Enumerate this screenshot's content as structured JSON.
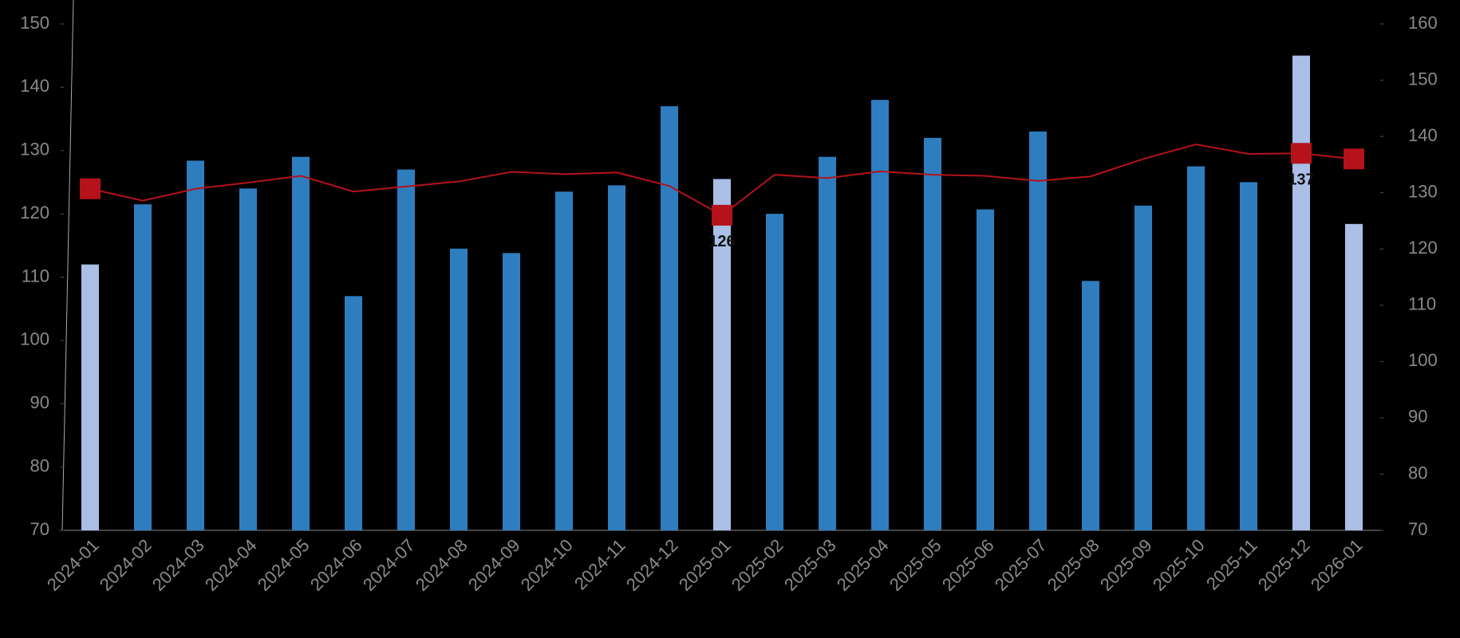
{
  "chart_data": {
    "type": "bar-line",
    "categories": [
      "2024-01",
      "2024-02",
      "2024-03",
      "2024-04",
      "2024-05",
      "2024-06",
      "2024-07",
      "2024-08",
      "2024-09",
      "2024-10",
      "2024-11",
      "2024-12",
      "2025-01",
      "2025-02",
      "2025-03",
      "2025-04",
      "2025-05",
      "2025-06",
      "2025-07",
      "2025-08",
      "2025-09",
      "2025-10",
      "2025-11",
      "2025-12",
      "2026-01"
    ],
    "series": [
      {
        "type": "bar",
        "color": "#2e7ebf",
        "highlight_color": "#aabee6",
        "highlighted": [
          true,
          false,
          false,
          false,
          false,
          false,
          false,
          false,
          false,
          false,
          false,
          false,
          true,
          false,
          false,
          false,
          false,
          false,
          false,
          false,
          false,
          false,
          false,
          true,
          true
        ],
        "values": [
          112,
          121.5,
          128.4,
          124,
          129,
          107,
          127,
          114.5,
          113.8,
          123.5,
          124.5,
          137,
          125.5,
          120,
          129,
          138,
          132,
          120.7,
          133,
          109.4,
          121.3,
          127.5,
          125,
          145,
          118.4
        ]
      },
      {
        "type": "line",
        "axis": "y2",
        "color": "#b5121b",
        "marked": [
          true,
          false,
          false,
          false,
          false,
          false,
          false,
          false,
          false,
          false,
          false,
          false,
          true,
          false,
          false,
          false,
          false,
          false,
          false,
          false,
          false,
          false,
          false,
          true,
          true
        ],
        "values": [
          130.7,
          128.6,
          130.7,
          131.8,
          133,
          130.2,
          131.1,
          132,
          133.7,
          133.3,
          133.6,
          131.2,
          126,
          133.2,
          132.6,
          133.8,
          133.2,
          133,
          132.1,
          132.9,
          136,
          138.6,
          136.9,
          137,
          136
        ],
        "value_labels": [
          null,
          null,
          null,
          null,
          null,
          null,
          null,
          null,
          null,
          null,
          null,
          null,
          "126",
          null,
          null,
          null,
          null,
          null,
          null,
          null,
          null,
          null,
          null,
          "137",
          null
        ]
      }
    ],
    "ylim": [
      70,
      150
    ],
    "yticks": [
      70,
      80,
      90,
      100,
      110,
      120,
      130,
      140,
      150
    ],
    "y2lim": [
      70,
      160
    ],
    "y2ticks": [
      70,
      80,
      90,
      100,
      110,
      120,
      130,
      140,
      150,
      160
    ]
  }
}
